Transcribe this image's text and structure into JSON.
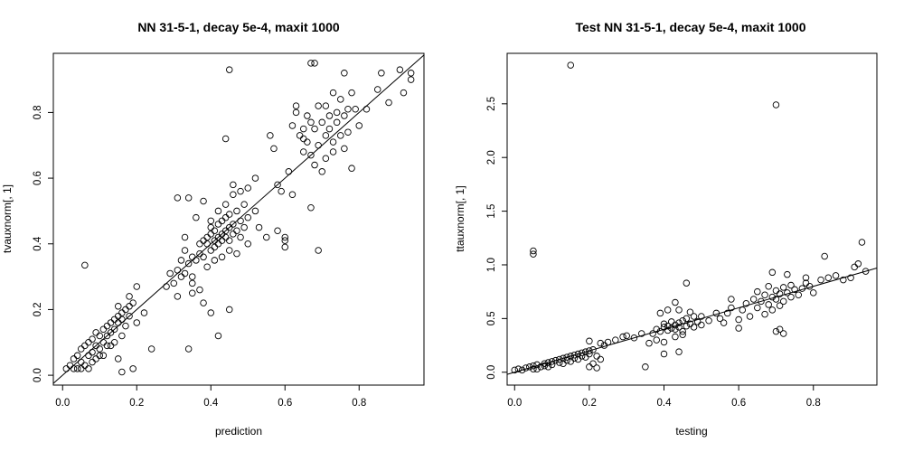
{
  "chart_data": [
    {
      "type": "scatter",
      "title": "NN 31-5-1, decay 5e-4, maxit 1000",
      "xlabel": "prediction",
      "ylabel": "tvauxnorm[, 1]",
      "xlim": [
        -0.025,
        0.975
      ],
      "ylim": [
        -0.03,
        0.98
      ],
      "xticks": [
        "0.0",
        "0.2",
        "0.4",
        "0.6",
        "0.8"
      ],
      "yticks": [
        "0.0",
        "0.2",
        "0.4",
        "0.6",
        "0.8"
      ],
      "reference_line": {
        "slope": 1,
        "intercept": 0
      },
      "points": [
        [
          0.01,
          0.02
        ],
        [
          0.02,
          0.03
        ],
        [
          0.03,
          0.05
        ],
        [
          0.03,
          0.02
        ],
        [
          0.04,
          0.06
        ],
        [
          0.05,
          0.08
        ],
        [
          0.05,
          0.04
        ],
        [
          0.06,
          0.09
        ],
        [
          0.07,
          0.06
        ],
        [
          0.07,
          0.1
        ],
        [
          0.08,
          0.07
        ],
        [
          0.08,
          0.11
        ],
        [
          0.09,
          0.09
        ],
        [
          0.09,
          0.13
        ],
        [
          0.1,
          0.12
        ],
        [
          0.1,
          0.08
        ],
        [
          0.11,
          0.14
        ],
        [
          0.11,
          0.1
        ],
        [
          0.12,
          0.15
        ],
        [
          0.12,
          0.12
        ],
        [
          0.13,
          0.16
        ],
        [
          0.13,
          0.13
        ],
        [
          0.14,
          0.17
        ],
        [
          0.14,
          0.14
        ],
        [
          0.15,
          0.18
        ],
        [
          0.15,
          0.16
        ],
        [
          0.16,
          0.19
        ],
        [
          0.16,
          0.17
        ],
        [
          0.17,
          0.2
        ],
        [
          0.17,
          0.15
        ],
        [
          0.18,
          0.21
        ],
        [
          0.18,
          0.18
        ],
        [
          0.19,
          0.22
        ],
        [
          0.06,
          0.03
        ],
        [
          0.09,
          0.05
        ],
        [
          0.12,
          0.09
        ],
        [
          0.2,
          0.16
        ],
        [
          0.22,
          0.19
        ],
        [
          0.05,
          0.02
        ],
        [
          0.08,
          0.04
        ],
        [
          0.04,
          0.02
        ],
        [
          0.1,
          0.06
        ],
        [
          0.13,
          0.09
        ],
        [
          0.16,
          0.12
        ],
        [
          0.07,
          0.02
        ],
        [
          0.11,
          0.06
        ],
        [
          0.14,
          0.1
        ],
        [
          0.15,
          0.21
        ],
        [
          0.18,
          0.24
        ],
        [
          0.2,
          0.27
        ],
        [
          0.06,
          0.335
        ],
        [
          0.16,
          0.01
        ],
        [
          0.19,
          0.02
        ],
        [
          0.24,
          0.08
        ],
        [
          0.15,
          0.05
        ],
        [
          0.3,
          0.28
        ],
        [
          0.31,
          0.32
        ],
        [
          0.32,
          0.3
        ],
        [
          0.32,
          0.35
        ],
        [
          0.33,
          0.31
        ],
        [
          0.33,
          0.38
        ],
        [
          0.34,
          0.34
        ],
        [
          0.35,
          0.36
        ],
        [
          0.35,
          0.3
        ],
        [
          0.36,
          0.35
        ],
        [
          0.37,
          0.4
        ],
        [
          0.37,
          0.37
        ],
        [
          0.38,
          0.41
        ],
        [
          0.38,
          0.36
        ],
        [
          0.39,
          0.4
        ],
        [
          0.39,
          0.42
        ],
        [
          0.4,
          0.38
        ],
        [
          0.4,
          0.43
        ],
        [
          0.4,
          0.45
        ],
        [
          0.41,
          0.41
        ],
        [
          0.41,
          0.44
        ],
        [
          0.41,
          0.39
        ],
        [
          0.42,
          0.42
        ],
        [
          0.42,
          0.46
        ],
        [
          0.42,
          0.4
        ],
        [
          0.43,
          0.43
        ],
        [
          0.43,
          0.47
        ],
        [
          0.43,
          0.41
        ],
        [
          0.44,
          0.44
        ],
        [
          0.44,
          0.42
        ],
        [
          0.44,
          0.48
        ],
        [
          0.45,
          0.45
        ],
        [
          0.45,
          0.41
        ],
        [
          0.45,
          0.49
        ],
        [
          0.46,
          0.43
        ],
        [
          0.46,
          0.46
        ],
        [
          0.47,
          0.44
        ],
        [
          0.47,
          0.5
        ],
        [
          0.48,
          0.42
        ],
        [
          0.48,
          0.47
        ],
        [
          0.49,
          0.45
        ],
        [
          0.49,
          0.52
        ],
        [
          0.5,
          0.4
        ],
        [
          0.5,
          0.48
        ],
        [
          0.38,
          0.53
        ],
        [
          0.36,
          0.48
        ],
        [
          0.34,
          0.54
        ],
        [
          0.39,
          0.33
        ],
        [
          0.41,
          0.35
        ],
        [
          0.43,
          0.36
        ],
        [
          0.45,
          0.38
        ],
        [
          0.47,
          0.37
        ],
        [
          0.4,
          0.47
        ],
        [
          0.42,
          0.5
        ],
        [
          0.44,
          0.52
        ],
        [
          0.46,
          0.55
        ],
        [
          0.48,
          0.56
        ],
        [
          0.35,
          0.28
        ],
        [
          0.37,
          0.26
        ],
        [
          0.31,
          0.54
        ],
        [
          0.35,
          0.25
        ],
        [
          0.38,
          0.22
        ],
        [
          0.4,
          0.19
        ],
        [
          0.42,
          0.12
        ],
        [
          0.45,
          0.2
        ],
        [
          0.34,
          0.08
        ],
        [
          0.52,
          0.5
        ],
        [
          0.53,
          0.45
        ],
        [
          0.55,
          0.42
        ],
        [
          0.44,
          0.72
        ],
        [
          0.45,
          0.93
        ],
        [
          0.5,
          0.57
        ],
        [
          0.52,
          0.6
        ],
        [
          0.46,
          0.58
        ],
        [
          0.33,
          0.42
        ],
        [
          0.29,
          0.31
        ],
        [
          0.28,
          0.27
        ],
        [
          0.31,
          0.24
        ],
        [
          0.56,
          0.73
        ],
        [
          0.57,
          0.69
        ],
        [
          0.58,
          0.58
        ],
        [
          0.59,
          0.56
        ],
        [
          0.6,
          0.42
        ],
        [
          0.6,
          0.39
        ],
        [
          0.61,
          0.62
        ],
        [
          0.62,
          0.76
        ],
        [
          0.62,
          0.55
        ],
        [
          0.63,
          0.8
        ],
        [
          0.63,
          0.82
        ],
        [
          0.64,
          0.73
        ],
        [
          0.65,
          0.72
        ],
        [
          0.65,
          0.68
        ],
        [
          0.66,
          0.79
        ],
        [
          0.66,
          0.71
        ],
        [
          0.67,
          0.67
        ],
        [
          0.67,
          0.51
        ],
        [
          0.68,
          0.75
        ],
        [
          0.68,
          0.64
        ],
        [
          0.69,
          0.82
        ],
        [
          0.69,
          0.7
        ],
        [
          0.7,
          0.77
        ],
        [
          0.7,
          0.62
        ],
        [
          0.71,
          0.73
        ],
        [
          0.71,
          0.66
        ],
        [
          0.72,
          0.79
        ],
        [
          0.72,
          0.75
        ],
        [
          0.73,
          0.71
        ],
        [
          0.73,
          0.68
        ],
        [
          0.74,
          0.8
        ],
        [
          0.74,
          0.77
        ],
        [
          0.75,
          0.73
        ],
        [
          0.75,
          0.84
        ],
        [
          0.76,
          0.79
        ],
        [
          0.76,
          0.69
        ],
        [
          0.77,
          0.81
        ],
        [
          0.77,
          0.74
        ],
        [
          0.78,
          0.63
        ],
        [
          0.78,
          0.86
        ],
        [
          0.79,
          0.81
        ],
        [
          0.8,
          0.76
        ],
        [
          0.82,
          0.81
        ],
        [
          0.67,
          0.95
        ],
        [
          0.68,
          0.95
        ],
        [
          0.76,
          0.92
        ],
        [
          0.85,
          0.87
        ],
        [
          0.86,
          0.92
        ],
        [
          0.88,
          0.83
        ],
        [
          0.91,
          0.93
        ],
        [
          0.92,
          0.86
        ],
        [
          0.94,
          0.92
        ],
        [
          0.94,
          0.9
        ],
        [
          0.69,
          0.38
        ],
        [
          0.6,
          0.41
        ],
        [
          0.58,
          0.44
        ],
        [
          0.65,
          0.75
        ],
        [
          0.67,
          0.77
        ],
        [
          0.71,
          0.82
        ],
        [
          0.73,
          0.86
        ]
      ]
    },
    {
      "type": "scatter",
      "title": "Test NN 31-5-1, decay 5e-4, maxit 1000",
      "xlabel": "testing",
      "ylabel": "ttauxnorm[, 1]",
      "xlim": [
        -0.02,
        0.97
      ],
      "ylim": [
        -0.12,
        2.97
      ],
      "xticks": [
        "0.0",
        "0.2",
        "0.4",
        "0.6",
        "0.8"
      ],
      "yticks": [
        "0.0",
        "0.5",
        "1.0",
        "1.5",
        "2.0",
        "2.5"
      ],
      "reference_line": {
        "slope": 1,
        "intercept": 0
      },
      "points": [
        [
          0.0,
          0.02
        ],
        [
          0.01,
          0.03
        ],
        [
          0.02,
          0.02
        ],
        [
          0.03,
          0.04
        ],
        [
          0.04,
          0.05
        ],
        [
          0.05,
          0.06
        ],
        [
          0.05,
          0.03
        ],
        [
          0.06,
          0.07
        ],
        [
          0.07,
          0.05
        ],
        [
          0.08,
          0.08
        ],
        [
          0.08,
          0.06
        ],
        [
          0.09,
          0.09
        ],
        [
          0.1,
          0.1
        ],
        [
          0.1,
          0.07
        ],
        [
          0.11,
          0.11
        ],
        [
          0.12,
          0.12
        ],
        [
          0.12,
          0.09
        ],
        [
          0.13,
          0.13
        ],
        [
          0.14,
          0.14
        ],
        [
          0.14,
          0.11
        ],
        [
          0.15,
          0.15
        ],
        [
          0.16,
          0.16
        ],
        [
          0.16,
          0.13
        ],
        [
          0.17,
          0.17
        ],
        [
          0.18,
          0.18
        ],
        [
          0.18,
          0.15
        ],
        [
          0.19,
          0.19
        ],
        [
          0.2,
          0.2
        ],
        [
          0.2,
          0.17
        ],
        [
          0.21,
          0.21
        ],
        [
          0.06,
          0.03
        ],
        [
          0.09,
          0.05
        ],
        [
          0.13,
          0.08
        ],
        [
          0.15,
          0.1
        ],
        [
          0.17,
          0.12
        ],
        [
          0.19,
          0.14
        ],
        [
          0.22,
          0.15
        ],
        [
          0.23,
          0.12
        ],
        [
          0.21,
          0.08
        ],
        [
          0.2,
          0.05
        ],
        [
          0.22,
          0.04
        ],
        [
          0.25,
          0.28
        ],
        [
          0.27,
          0.3
        ],
        [
          0.29,
          0.33
        ],
        [
          0.3,
          0.34
        ],
        [
          0.32,
          0.32
        ],
        [
          0.34,
          0.36
        ],
        [
          0.2,
          0.29
        ],
        [
          0.23,
          0.27
        ],
        [
          0.24,
          0.25
        ],
        [
          0.05,
          1.1
        ],
        [
          0.05,
          1.13
        ],
        [
          0.15,
          2.86
        ],
        [
          0.7,
          2.49
        ],
        [
          0.37,
          0.36
        ],
        [
          0.38,
          0.4
        ],
        [
          0.39,
          0.38
        ],
        [
          0.4,
          0.42
        ],
        [
          0.4,
          0.45
        ],
        [
          0.41,
          0.39
        ],
        [
          0.41,
          0.43
        ],
        [
          0.42,
          0.41
        ],
        [
          0.42,
          0.47
        ],
        [
          0.43,
          0.44
        ],
        [
          0.43,
          0.4
        ],
        [
          0.44,
          0.46
        ],
        [
          0.44,
          0.42
        ],
        [
          0.45,
          0.48
        ],
        [
          0.45,
          0.38
        ],
        [
          0.46,
          0.43
        ],
        [
          0.46,
          0.5
        ],
        [
          0.47,
          0.45
        ],
        [
          0.48,
          0.42
        ],
        [
          0.48,
          0.52
        ],
        [
          0.49,
          0.47
        ],
        [
          0.5,
          0.44
        ],
        [
          0.5,
          0.52
        ],
        [
          0.52,
          0.48
        ],
        [
          0.54,
          0.55
        ],
        [
          0.55,
          0.5
        ],
        [
          0.38,
          0.3
        ],
        [
          0.4,
          0.28
        ],
        [
          0.43,
          0.33
        ],
        [
          0.45,
          0.35
        ],
        [
          0.39,
          0.55
        ],
        [
          0.41,
          0.58
        ],
        [
          0.44,
          0.58
        ],
        [
          0.47,
          0.56
        ],
        [
          0.36,
          0.27
        ],
        [
          0.4,
          0.17
        ],
        [
          0.44,
          0.19
        ],
        [
          0.43,
          0.65
        ],
        [
          0.46,
          0.83
        ],
        [
          0.35,
          0.05
        ],
        [
          0.56,
          0.46
        ],
        [
          0.57,
          0.55
        ],
        [
          0.58,
          0.6
        ],
        [
          0.6,
          0.49
        ],
        [
          0.61,
          0.58
        ],
        [
          0.62,
          0.64
        ],
        [
          0.63,
          0.52
        ],
        [
          0.64,
          0.68
        ],
        [
          0.65,
          0.6
        ],
        [
          0.65,
          0.75
        ],
        [
          0.66,
          0.66
        ],
        [
          0.67,
          0.54
        ],
        [
          0.67,
          0.72
        ],
        [
          0.68,
          0.8
        ],
        [
          0.68,
          0.63
        ],
        [
          0.69,
          0.7
        ],
        [
          0.69,
          0.58
        ],
        [
          0.7,
          0.76
        ],
        [
          0.7,
          0.68
        ],
        [
          0.71,
          0.73
        ],
        [
          0.71,
          0.62
        ],
        [
          0.72,
          0.79
        ],
        [
          0.72,
          0.66
        ],
        [
          0.73,
          0.74
        ],
        [
          0.74,
          0.7
        ],
        [
          0.74,
          0.81
        ],
        [
          0.75,
          0.77
        ],
        [
          0.76,
          0.72
        ],
        [
          0.77,
          0.78
        ],
        [
          0.78,
          0.83
        ],
        [
          0.79,
          0.8
        ],
        [
          0.8,
          0.74
        ],
        [
          0.82,
          0.86
        ],
        [
          0.84,
          0.88
        ],
        [
          0.86,
          0.9
        ],
        [
          0.88,
          0.86
        ],
        [
          0.9,
          0.88
        ],
        [
          0.91,
          0.98
        ],
        [
          0.92,
          1.01
        ],
        [
          0.93,
          1.21
        ],
        [
          0.94,
          0.94
        ],
        [
          0.7,
          0.38
        ],
        [
          0.71,
          0.4
        ],
        [
          0.72,
          0.36
        ],
        [
          0.78,
          0.88
        ],
        [
          0.83,
          1.08
        ],
        [
          0.69,
          0.93
        ],
        [
          0.6,
          0.41
        ],
        [
          0.73,
          0.91
        ],
        [
          0.58,
          0.68
        ]
      ]
    }
  ]
}
